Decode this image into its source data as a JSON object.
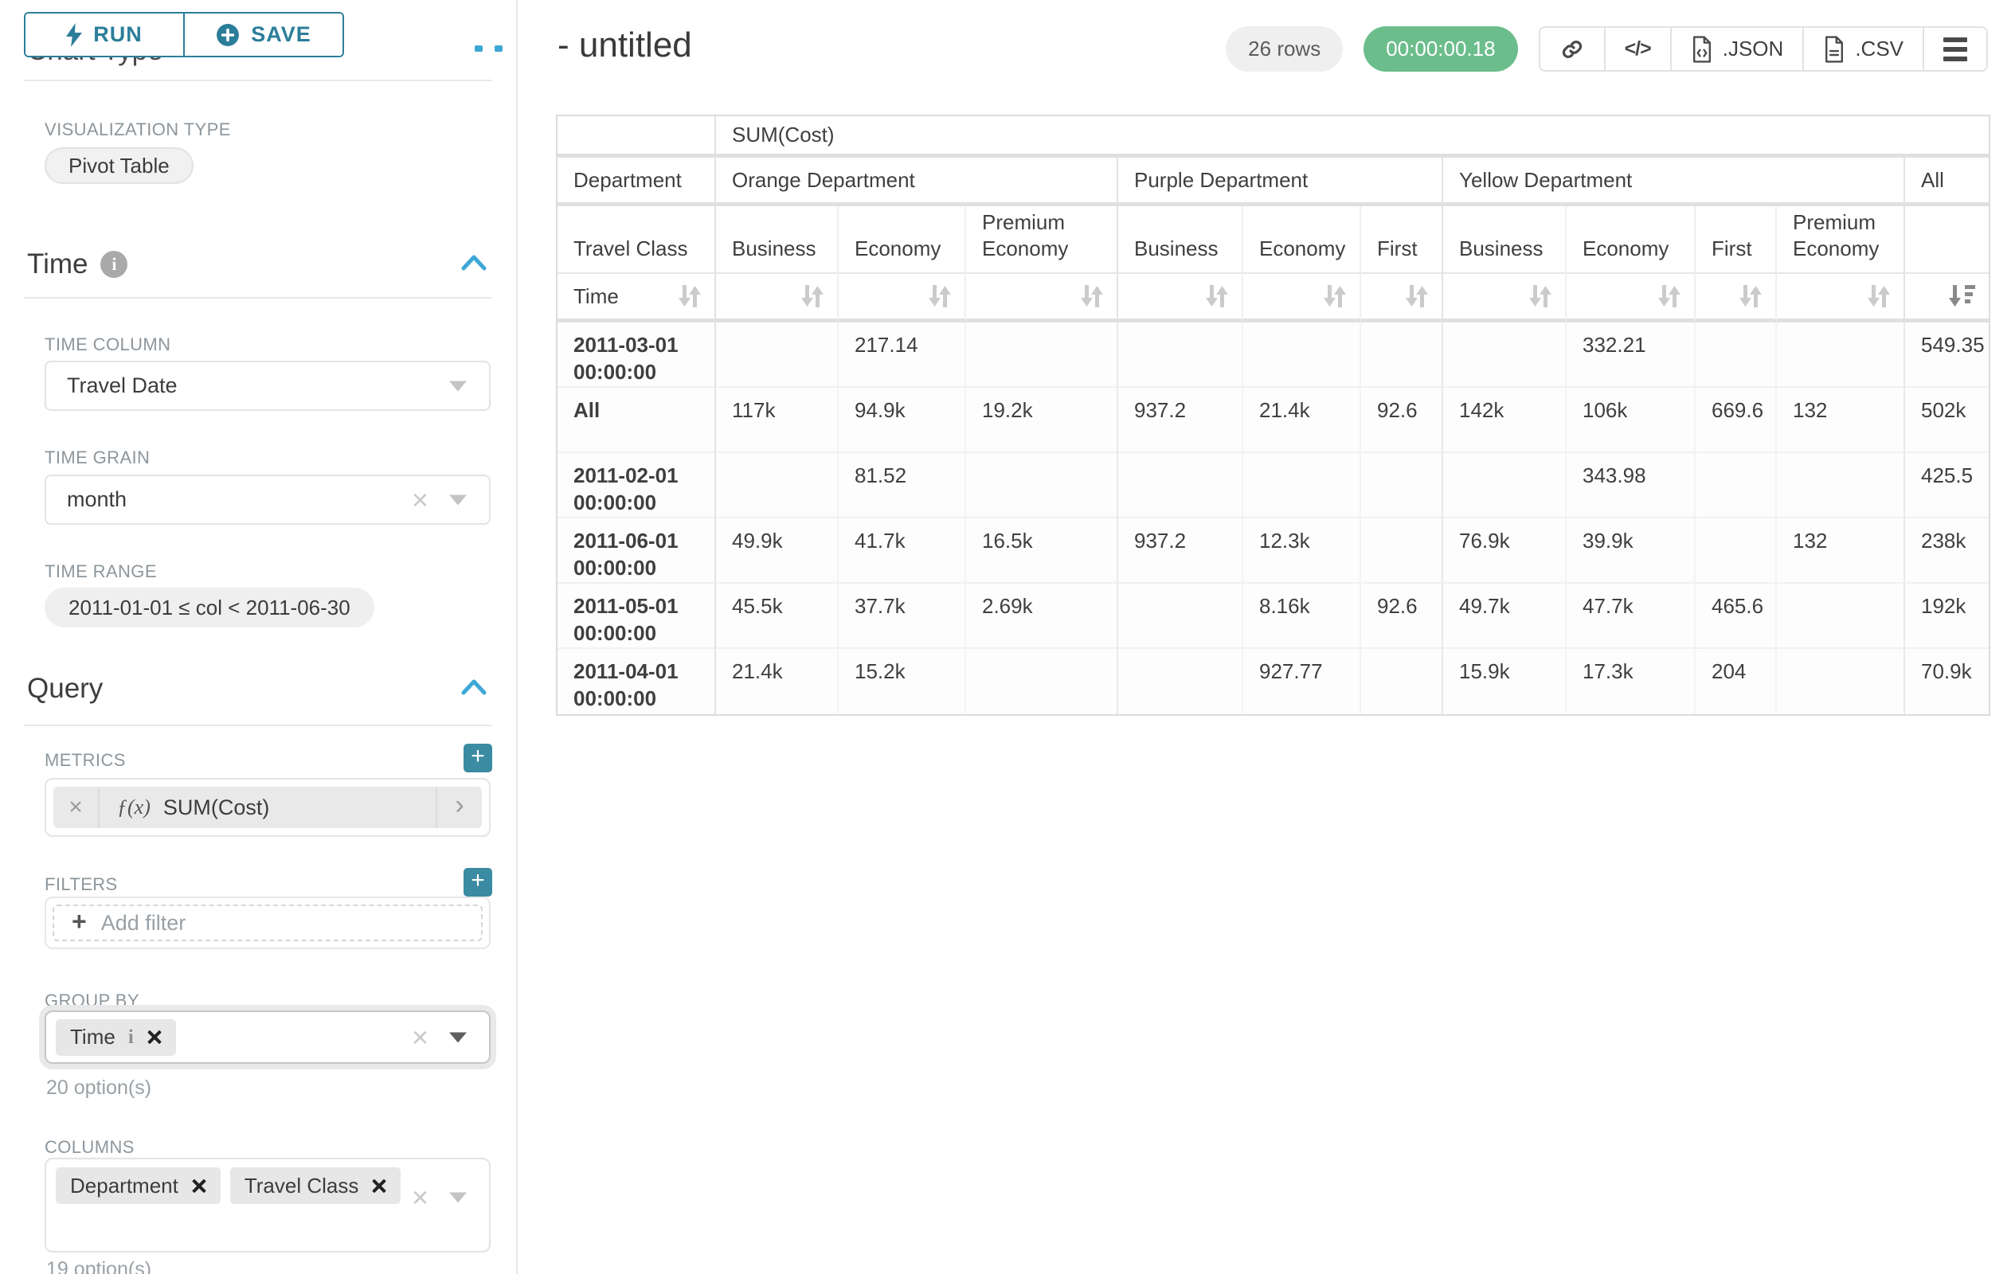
{
  "sidebar": {
    "run_label": "RUN",
    "save_label": "SAVE",
    "chart_type_title": "Chart Type",
    "visualization_type_label": "VISUALIZATION TYPE",
    "visualization_type_value": "Pivot Table",
    "time": {
      "title": "Time",
      "column_label": "TIME COLUMN",
      "column_value": "Travel Date",
      "grain_label": "TIME GRAIN",
      "grain_value": "month",
      "range_label": "TIME RANGE",
      "range_value": "2011-01-01 ≤ col < 2011-06-30"
    },
    "query": {
      "title": "Query",
      "metrics_label": "METRICS",
      "metric_fx": "ƒ(x)",
      "metric_value": "SUM(Cost)",
      "filters_label": "FILTERS",
      "add_filter_label": "Add filter",
      "group_by_label": "GROUP BY",
      "group_by_items": [
        "Time"
      ],
      "group_by_hint": "20 option(s)",
      "columns_label": "COLUMNS",
      "columns_items": [
        "Department",
        "Travel Class"
      ],
      "columns_hint": "19 option(s)"
    }
  },
  "header": {
    "title": "- untitled",
    "rows_badge": "26 rows",
    "timer": "00:00:00.18",
    "export_json_label": ".JSON",
    "export_csv_label": ".CSV"
  },
  "icons": {
    "clear_x": "×",
    "chevron_right": "›",
    "plus": "+",
    "info_i": "i",
    "code": "</>"
  },
  "table": {
    "metric_header": "SUM(Cost)",
    "department_label": "Department",
    "travel_class_label": "Travel Class",
    "time_label": "Time",
    "groups": [
      {
        "name": "Orange Department",
        "cols": [
          "Business",
          "Economy",
          "Premium Economy"
        ]
      },
      {
        "name": "Purple Department",
        "cols": [
          "Business",
          "Economy",
          "First"
        ]
      },
      {
        "name": "Yellow Department",
        "cols": [
          "Business",
          "Economy",
          "First",
          "Premium Economy"
        ]
      },
      {
        "name": "All",
        "cols": [
          ""
        ]
      }
    ],
    "rows": [
      {
        "label": "2011-03-01 00:00:00",
        "values": [
          "",
          "217.14",
          "",
          "",
          "",
          "",
          "",
          "332.21",
          "",
          "",
          "549.35"
        ]
      },
      {
        "label": "All",
        "values": [
          "117k",
          "94.9k",
          "19.2k",
          "937.2",
          "21.4k",
          "92.6",
          "142k",
          "106k",
          "669.6",
          "132",
          "502k"
        ]
      },
      {
        "label": "2011-02-01 00:00:00",
        "values": [
          "",
          "81.52",
          "",
          "",
          "",
          "",
          "",
          "343.98",
          "",
          "",
          "425.5"
        ]
      },
      {
        "label": "2011-06-01 00:00:00",
        "values": [
          "49.9k",
          "41.7k",
          "16.5k",
          "937.2",
          "12.3k",
          "",
          "76.9k",
          "39.9k",
          "",
          "132",
          "238k"
        ]
      },
      {
        "label": "2011-05-01 00:00:00",
        "values": [
          "45.5k",
          "37.7k",
          "2.69k",
          "",
          "8.16k",
          "92.6",
          "49.7k",
          "47.7k",
          "465.6",
          "",
          "192k"
        ]
      },
      {
        "label": "2011-04-01 00:00:00",
        "values": [
          "21.4k",
          "15.2k",
          "",
          "",
          "927.77",
          "",
          "15.9k",
          "17.3k",
          "204",
          "",
          "70.9k"
        ]
      }
    ]
  },
  "colors": {
    "accent_teal": "#2b7e99",
    "chevron_blue": "#3fa7d6",
    "timer_green": "#6cbd8c",
    "plus_button": "#3b8ba2"
  }
}
